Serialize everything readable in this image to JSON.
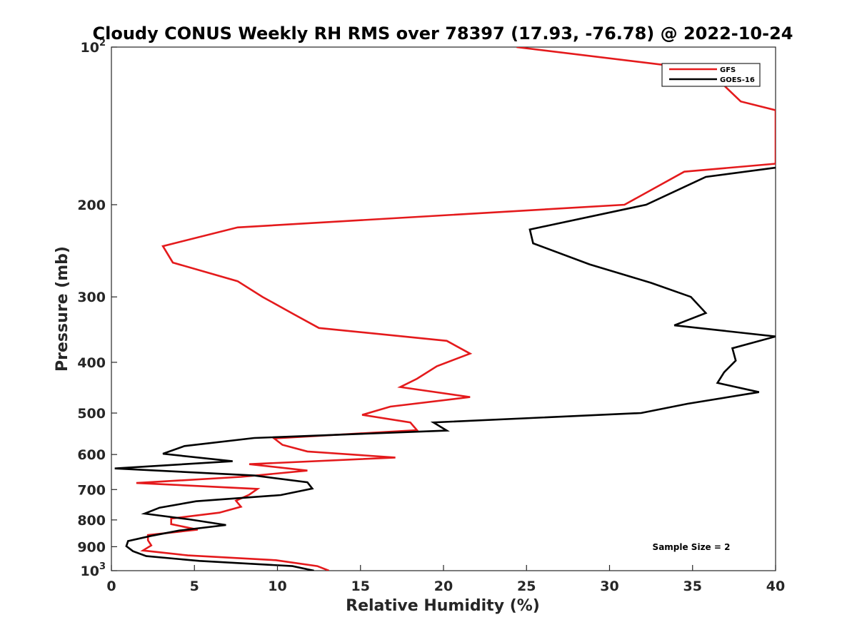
{
  "chart_data": {
    "type": "line",
    "title": "Cloudy CONUS Weekly RH RMS over 78397 (17.93, -76.78) @ 2022-10-24",
    "xlabel": "Relative Humidity (%)",
    "ylabel": "Pressure (mb)",
    "xlim": [
      0,
      40
    ],
    "ylim": [
      100,
      1000
    ],
    "yscale": "log",
    "y_reversed": true,
    "grid": false,
    "legend_position": "top-right",
    "x_ticks": [
      0,
      5,
      10,
      15,
      20,
      25,
      30,
      35,
      40
    ],
    "x_tick_labels": [
      "0",
      "5",
      "10",
      "15",
      "20",
      "25",
      "30",
      "35",
      "40"
    ],
    "y_ticks": [
      100,
      200,
      300,
      400,
      500,
      600,
      700,
      800,
      900,
      1000
    ],
    "y_tick_labels": [
      {
        "base": "10",
        "exp": "2"
      },
      {
        "base": "200",
        "exp": ""
      },
      {
        "base": "300",
        "exp": ""
      },
      {
        "base": "400",
        "exp": ""
      },
      {
        "base": "500",
        "exp": ""
      },
      {
        "base": "600",
        "exp": ""
      },
      {
        "base": "700",
        "exp": ""
      },
      {
        "base": "800",
        "exp": ""
      },
      {
        "base": "900",
        "exp": ""
      },
      {
        "base": "10",
        "exp": "3"
      }
    ],
    "annotation": "Sample Size = 2",
    "series": [
      {
        "name": "GFS",
        "color": "#e41a1c",
        "points": [
          [
            24.4,
            100
          ],
          [
            35.2,
            110
          ],
          [
            36.1,
            112
          ],
          [
            37.9,
            127
          ],
          [
            40.0,
            132
          ],
          [
            40.0,
            167
          ],
          [
            34.5,
            173
          ],
          [
            30.9,
            200
          ],
          [
            7.6,
            221
          ],
          [
            3.1,
            240
          ],
          [
            3.7,
            258
          ],
          [
            7.6,
            280
          ],
          [
            9.1,
            300
          ],
          [
            11.0,
            324
          ],
          [
            12.5,
            344
          ],
          [
            20.2,
            364
          ],
          [
            21.6,
            385
          ],
          [
            19.6,
            407
          ],
          [
            18.4,
            430
          ],
          [
            17.4,
            446
          ],
          [
            21.6,
            466
          ],
          [
            16.8,
            486
          ],
          [
            15.1,
            504
          ],
          [
            18.0,
            521
          ],
          [
            18.4,
            539
          ],
          [
            9.8,
            559
          ],
          [
            10.3,
            575
          ],
          [
            11.8,
            592
          ],
          [
            17.1,
            608
          ],
          [
            8.3,
            626
          ],
          [
            11.8,
            644
          ],
          [
            7.8,
            662
          ],
          [
            1.5,
            680
          ],
          [
            8.8,
            698
          ],
          [
            8.3,
            716
          ],
          [
            7.5,
            735
          ],
          [
            7.8,
            755
          ],
          [
            6.5,
            775
          ],
          [
            3.6,
            795
          ],
          [
            3.6,
            815
          ],
          [
            5.2,
            835
          ],
          [
            2.2,
            855
          ],
          [
            2.2,
            875
          ],
          [
            2.4,
            895
          ],
          [
            1.9,
            915
          ],
          [
            4.6,
            935
          ],
          [
            9.9,
            955
          ],
          [
            12.4,
            980
          ],
          [
            13.1,
            1000
          ]
        ]
      },
      {
        "name": "GOES-16",
        "color": "#000000",
        "points": [
          [
            40.0,
            170
          ],
          [
            35.8,
            177
          ],
          [
            32.2,
            200
          ],
          [
            25.2,
            223
          ],
          [
            25.4,
            237
          ],
          [
            28.8,
            260
          ],
          [
            32.5,
            282
          ],
          [
            34.9,
            300
          ],
          [
            35.8,
            322
          ],
          [
            33.9,
            340
          ],
          [
            40.0,
            357
          ],
          [
            37.4,
            376
          ],
          [
            37.6,
            397
          ],
          [
            36.9,
            418
          ],
          [
            36.5,
            438
          ],
          [
            39.0,
            456
          ],
          [
            34.7,
            480
          ],
          [
            31.9,
            500
          ],
          [
            19.4,
            521
          ],
          [
            20.2,
            540
          ],
          [
            8.6,
            558
          ],
          [
            4.4,
            578
          ],
          [
            3.1,
            598
          ],
          [
            7.3,
            618
          ],
          [
            0.2,
            638
          ],
          [
            8.6,
            658
          ],
          [
            11.8,
            678
          ],
          [
            12.1,
            697
          ],
          [
            10.2,
            717
          ],
          [
            5.1,
            737
          ],
          [
            2.9,
            758
          ],
          [
            2.0,
            778
          ],
          [
            4.7,
            798
          ],
          [
            6.9,
            818
          ],
          [
            4.1,
            838
          ],
          [
            2.4,
            858
          ],
          [
            1.0,
            878
          ],
          [
            0.9,
            898
          ],
          [
            1.3,
            918
          ],
          [
            2.1,
            938
          ],
          [
            5.3,
            958
          ],
          [
            10.9,
            980
          ],
          [
            12.2,
            1000
          ]
        ]
      }
    ]
  }
}
